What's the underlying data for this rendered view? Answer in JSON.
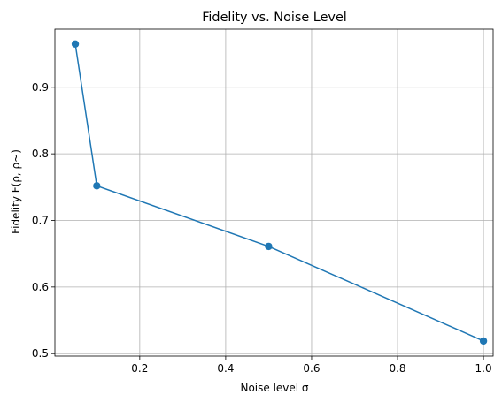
{
  "chart_data": {
    "type": "line",
    "title": "Fidelity vs. Noise Level",
    "xlabel": "Noise level σ",
    "ylabel": "Fidelity F(ρ, ρ~)",
    "x": [
      0.05,
      0.1,
      0.5,
      1.0
    ],
    "series": [
      {
        "values": [
          0.965,
          0.752,
          0.661,
          0.519
        ]
      }
    ],
    "xlim": [
      0.0025,
      1.0225
    ],
    "ylim": [
      0.4963,
      0.9873
    ],
    "xticks": [
      0.2,
      0.4,
      0.6,
      0.8,
      1.0
    ],
    "xtick_labels": [
      "0.2",
      "0.4",
      "0.6",
      "0.8",
      "1.0"
    ],
    "yticks": [
      0.5,
      0.6,
      0.7,
      0.8,
      0.9
    ],
    "ytick_labels": [
      "0.5",
      "0.6",
      "0.7",
      "0.8",
      "0.9"
    ],
    "grid": true,
    "marker": "circle",
    "colors": {
      "line": "#1f77b4",
      "grid": "#b0b0b0",
      "axes": "#000000"
    }
  }
}
